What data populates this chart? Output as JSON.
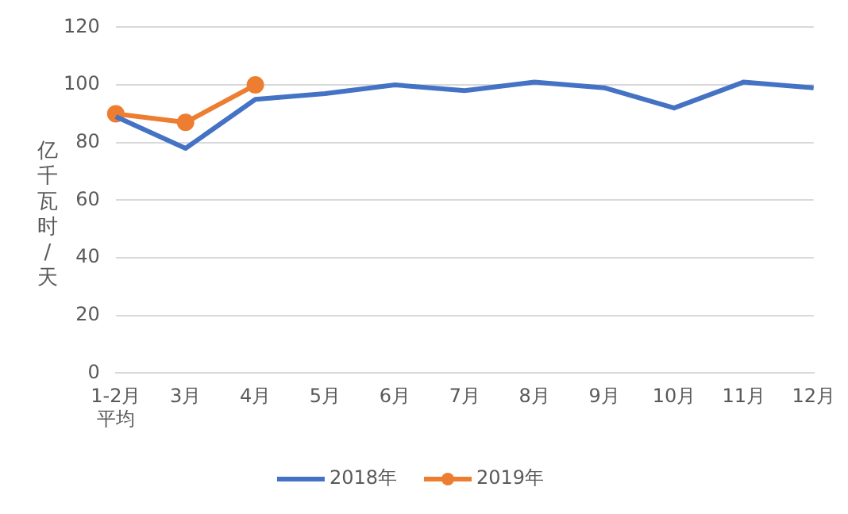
{
  "chart_data": {
    "type": "line",
    "ylabel": "亿千瓦时/天",
    "categories": [
      "1-2月平均",
      "3月",
      "4月",
      "5月",
      "6月",
      "7月",
      "8月",
      "9月",
      "10月",
      "11月",
      "12月"
    ],
    "series": [
      {
        "name": "2018年",
        "color": "#4472c4",
        "marker": "none",
        "values": [
          89,
          78,
          95,
          97,
          100,
          98,
          101,
          99,
          92,
          101,
          99
        ]
      },
      {
        "name": "2019年",
        "color": "#ed7d31",
        "marker": "circle",
        "values": [
          90,
          87,
          100,
          null,
          null,
          null,
          null,
          null,
          null,
          null,
          null
        ]
      }
    ],
    "ylim": [
      0,
      120
    ],
    "yticks": [
      0,
      20,
      40,
      60,
      80,
      100,
      120
    ],
    "grid": "y",
    "legend": "bottom",
    "line_style": "solid"
  }
}
